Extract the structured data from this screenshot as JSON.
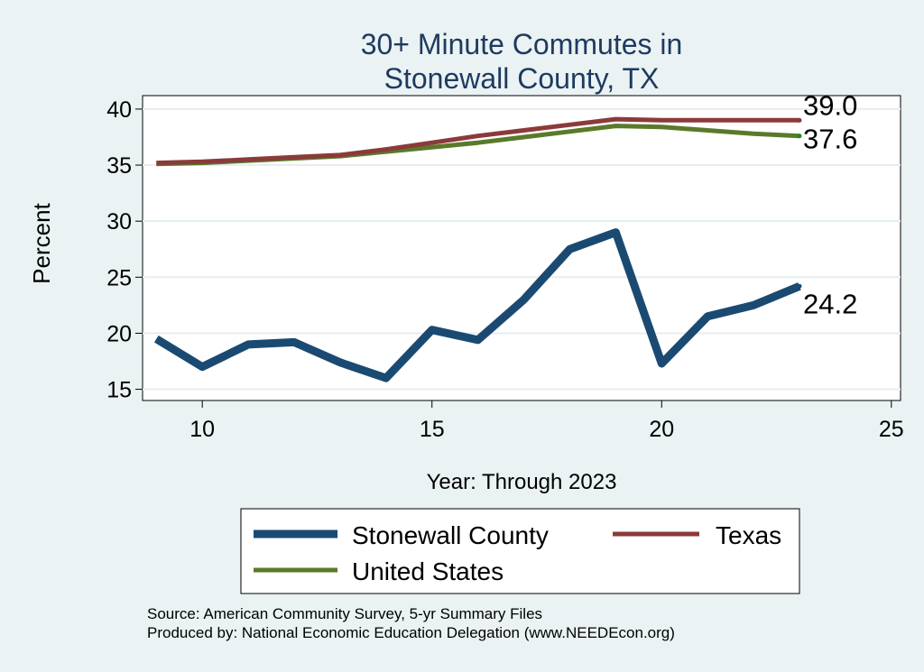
{
  "chart_data": {
    "type": "line",
    "title": "30+ Minute Commutes in",
    "subtitle": "Stonewall County, TX",
    "xlabel": "Year: Through 2023",
    "ylabel": "Percent",
    "xlim": [
      8.7,
      25.2
    ],
    "ylim": [
      14.0,
      41.2
    ],
    "xticks": [
      10,
      15,
      20,
      25
    ],
    "yticks": [
      15,
      20,
      25,
      30,
      35,
      40
    ],
    "x": [
      9,
      10,
      11,
      12,
      13,
      14,
      15,
      16,
      17,
      18,
      19,
      20,
      21,
      22,
      23
    ],
    "grid": true,
    "legend_position": "bottom",
    "series": [
      {
        "name": "Stonewall County",
        "color": "#1a4a72",
        "values": [
          19.5,
          17.0,
          19.0,
          19.2,
          17.4,
          16.0,
          20.3,
          19.4,
          23.0,
          27.5,
          29.0,
          17.3,
          21.5,
          22.5,
          24.2
        ],
        "end_label": "24.2"
      },
      {
        "name": "Texas",
        "color": "#8b3a3a",
        "values": [
          35.2,
          35.3,
          35.5,
          35.7,
          35.9,
          36.4,
          37.0,
          37.6,
          38.1,
          38.6,
          39.1,
          39.0,
          39.0,
          39.0,
          39.0
        ],
        "end_label": "39.0"
      },
      {
        "name": "United States",
        "color": "#5a7a2a",
        "values": [
          35.1,
          35.2,
          35.4,
          35.6,
          35.8,
          36.2,
          36.6,
          37.0,
          37.5,
          38.0,
          38.5,
          38.4,
          38.1,
          37.8,
          37.6
        ],
        "end_label": "37.6"
      }
    ]
  },
  "footer": {
    "source": "Source: American Community Survey, 5-yr Summary Files",
    "produced": "Produced by: National Economic Education Delegation (www.NEEDEcon.org)"
  }
}
